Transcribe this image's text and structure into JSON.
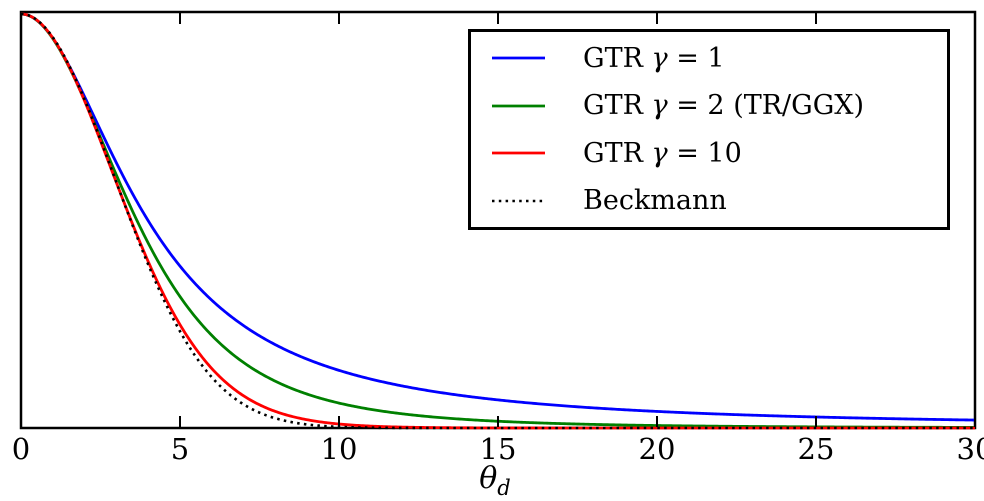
{
  "figure": {
    "background": "#ffffff",
    "frame_color": "#000000"
  },
  "chart_data": {
    "type": "line",
    "title": "",
    "xlabel_sym": "θ",
    "xlabel_sub": "d",
    "xlim": [
      0,
      30
    ],
    "ylim": [
      0,
      1
    ],
    "x_ticks": [
      0,
      5,
      10,
      15,
      20,
      25,
      30
    ],
    "x_tick_labels": [
      "0",
      "5",
      "10",
      "15",
      "20",
      "25",
      "30"
    ],
    "y_ticks": [],
    "grid": false,
    "legend_position": "upper-right",
    "sample_x_deg": [
      0,
      2.5,
      5,
      7.5,
      10,
      12.5,
      15,
      17.5,
      20,
      22.5,
      25,
      27.5,
      30
    ],
    "series": [
      {
        "name": "gtr-gamma-1",
        "label": "GTR γ = 1",
        "label_pre": "GTR ",
        "label_sym": "γ",
        "label_post": " = 1",
        "color": "#0000ff",
        "line_style": "solid",
        "model": {
          "type": "gtr",
          "gamma": 1,
          "alpha2": 0.0048544
        },
        "values": [
          1.0,
          0.7194,
          0.3911,
          0.2226,
          0.1393,
          0.0943,
          0.0679,
          0.0512,
          0.04,
          0.0322,
          0.0266,
          0.0224,
          0.0191
        ]
      },
      {
        "name": "gtr-gamma-2",
        "label": "GTR γ = 2 (TR/GGX)",
        "label_pre": "GTR ",
        "label_sym": "γ",
        "label_post": " = 2 (TR/GGX)",
        "color": "#008000",
        "line_style": "solid",
        "model": {
          "type": "gtr",
          "gamma": 2,
          "alpha2": 0.0097087
        },
        "values": [
          1.0,
          0.7014,
          0.3175,
          0.1334,
          0.0602,
          0.03,
          0.0163,
          0.0096,
          0.006,
          0.0039,
          0.0027,
          0.0019,
          0.0014
        ]
      },
      {
        "name": "gtr-gamma-10",
        "label": "GTR γ = 10",
        "label_pre": "GTR ",
        "label_sym": "γ",
        "label_post": " = 10",
        "color": "#ff0000",
        "line_style": "solid",
        "model": {
          "type": "gtr",
          "gamma": 10,
          "alpha2": 0.0485437
        },
        "values": [
          1.0,
          0.6934,
          0.2496,
          0.0561,
          0.0096,
          0.0015,
          0.0002,
          0.0,
          0.0,
          0.0,
          0.0,
          0.0,
          0.0
        ]
      },
      {
        "name": "beckmann",
        "label": "Beckmann",
        "label_pre": "Beckmann",
        "label_sym": "",
        "label_post": "",
        "color": "#000000",
        "line_style": "dotted",
        "model": {
          "type": "beckmann",
          "inv_alpha2": 190
        },
        "values": [
          1.0,
          0.6961,
          0.2336,
          0.0371,
          0.0027,
          0.0001,
          0.0,
          0.0,
          0.0,
          0.0,
          0.0,
          0.0,
          0.0
        ]
      }
    ]
  }
}
